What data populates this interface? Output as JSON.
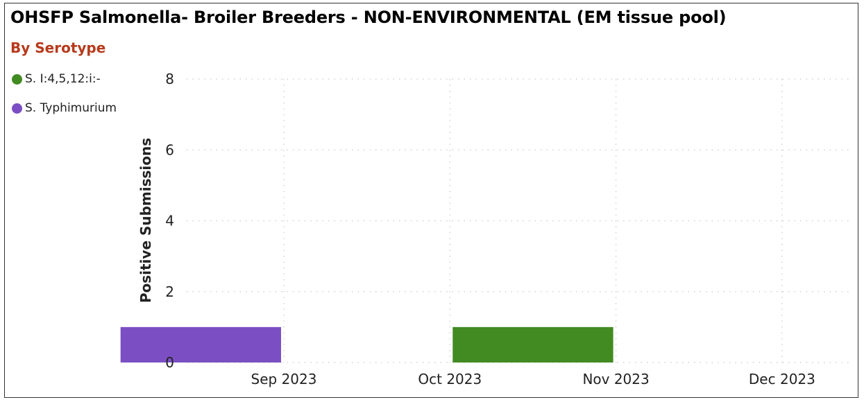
{
  "chart_data": {
    "type": "bar",
    "title": "OHSFP Salmonella- Broiler Breeders - NON-ENVIRONMENTAL (EM tissue pool)",
    "subtitle": "By Serotype",
    "xlabel": "",
    "ylabel": "Positive Submissions",
    "ylim": [
      0,
      8
    ],
    "yticks": [
      "0",
      "2",
      "4",
      "6",
      "8"
    ],
    "x_ticks": [
      "Sep 2023",
      "Oct 2023",
      "Nov 2023",
      "Dec 2023"
    ],
    "grid": true,
    "legend_position": "left",
    "series": [
      {
        "name": "S. I:4,5,12:i:-",
        "color": "#428A22",
        "points": [
          {
            "x": "Oct 2023",
            "value": 1
          }
        ]
      },
      {
        "name": "S. Typhimurium",
        "color": "#7B4FC3",
        "points": [
          {
            "x": "Aug 2023",
            "value": 1
          }
        ]
      }
    ]
  }
}
